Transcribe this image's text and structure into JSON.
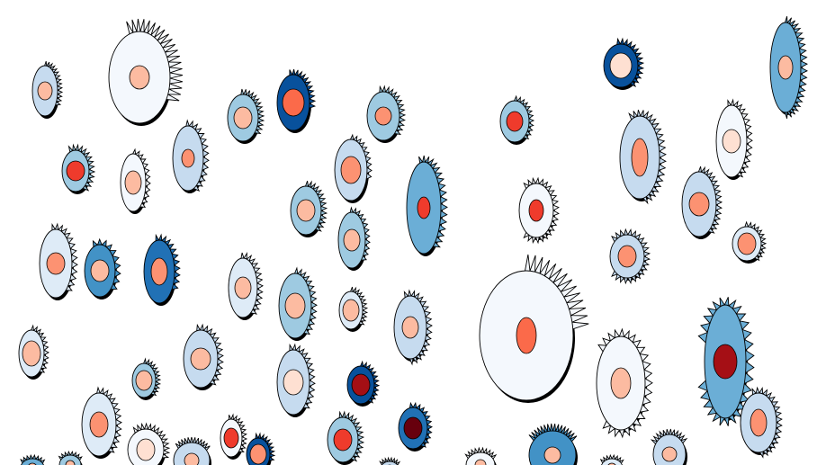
{
  "palette": {
    "background": "#ffffff",
    "outline": "#000000",
    "blues": [
      "#f4f8fd",
      "#deebf7",
      "#c6dbef",
      "#9ecae1",
      "#6baed6",
      "#4292c6",
      "#2171b5",
      "#08519c"
    ],
    "reds": [
      "#fee0d2",
      "#fcbba1",
      "#fc9272",
      "#fb6a4a",
      "#ef3b2c",
      "#cb181d",
      "#a50f15",
      "#67000d"
    ]
  }
}
